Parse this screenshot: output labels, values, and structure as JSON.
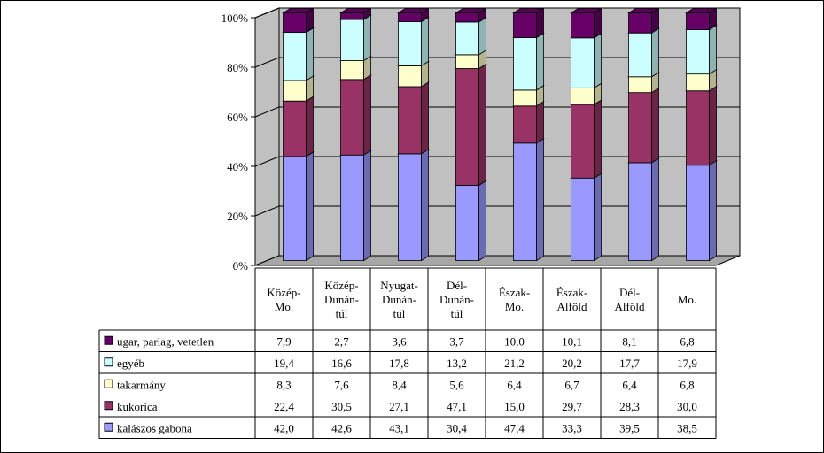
{
  "chart_data": {
    "type": "bar",
    "stacked": true,
    "percent": true,
    "three_d": true,
    "title": "",
    "xlabel": "",
    "ylabel": "",
    "ylim": [
      0,
      100
    ],
    "y_ticks": [
      "0%",
      "20%",
      "40%",
      "60%",
      "80%",
      "100%"
    ],
    "grid": true,
    "legend": "data-table-left",
    "categories": [
      [
        "Közép-",
        "Mo."
      ],
      [
        "Közép-",
        "Dunán-",
        "túl"
      ],
      [
        "Nyugat-",
        "Dunán-",
        "túl"
      ],
      [
        "Dél-",
        "Dunán-",
        "túl"
      ],
      [
        "Észak-",
        "Mo."
      ],
      [
        "Észak-",
        "Alföld"
      ],
      [
        "Dél-",
        "Alföld"
      ],
      [
        "Mo."
      ]
    ],
    "series": [
      {
        "name": "kalászos gabona",
        "color": "#9999ff",
        "values": [
          42.0,
          42.6,
          43.1,
          30.4,
          47.4,
          33.3,
          39.5,
          38.5
        ],
        "labels": [
          "42,0",
          "42,6",
          "43,1",
          "30,4",
          "47,4",
          "33,3",
          "39,5",
          "38,5"
        ]
      },
      {
        "name": "kukorica",
        "color": "#993366",
        "values": [
          22.4,
          30.5,
          27.1,
          47.1,
          15.0,
          29.7,
          28.3,
          30.0
        ],
        "labels": [
          "22,4",
          "30,5",
          "27,1",
          "47,1",
          "15,0",
          "29,7",
          "28,3",
          "30,0"
        ]
      },
      {
        "name": "takarmány",
        "color": "#ffffcc",
        "values": [
          8.3,
          7.6,
          8.4,
          5.6,
          6.4,
          6.7,
          6.4,
          6.8
        ],
        "labels": [
          "8,3",
          "7,6",
          "8,4",
          "5,6",
          "6,4",
          "6,7",
          "6,4",
          "6,8"
        ]
      },
      {
        "name": "egyéb",
        "color": "#ccffff",
        "values": [
          19.4,
          16.6,
          17.8,
          13.2,
          21.2,
          20.2,
          17.7,
          17.9
        ],
        "labels": [
          "19,4",
          "16,6",
          "17,8",
          "13,2",
          "21,2",
          "20,2",
          "17,7",
          "17,9"
        ]
      },
      {
        "name": "ugar, parlag, vetetlen",
        "color": "#660066",
        "values": [
          7.9,
          2.7,
          3.6,
          3.7,
          10.0,
          10.1,
          8.1,
          6.8
        ],
        "labels": [
          "7,9",
          "2,7",
          "3,6",
          "3,7",
          "10,0",
          "10,1",
          "8,1",
          "6,8"
        ]
      }
    ],
    "table_row_order": [
      4,
      3,
      2,
      1,
      0
    ]
  }
}
